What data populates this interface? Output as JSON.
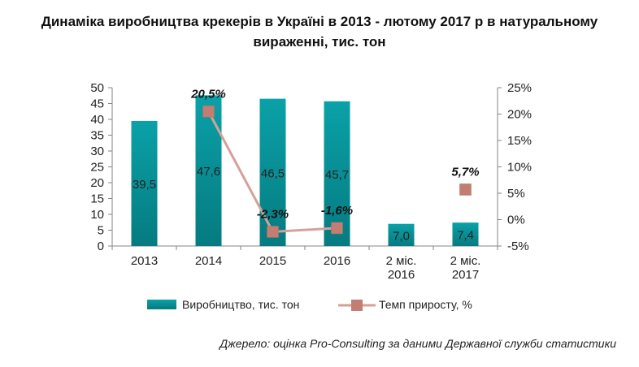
{
  "title_line1": "Динаміка виробництва крекерів в Україні в 2013 - лютому 2017 р в натуральному",
  "title_line2": "вираженні, тис. тон",
  "source": "Джерело: оцінка Pro-Consulting за даними Державної служби статистики",
  "colors": {
    "bar": "#0aa1a8",
    "line": "#d4a19a",
    "marker": "#c27e73"
  },
  "chart_data": {
    "type": "bar",
    "categories": [
      [
        "2013"
      ],
      [
        "2014"
      ],
      [
        "2015"
      ],
      [
        "2016"
      ],
      [
        "2 міс.",
        "2016"
      ],
      [
        "2 міс.",
        "2017"
      ]
    ],
    "series": [
      {
        "name": "Виробництво, тис. тон",
        "type": "bar",
        "axis": "left",
        "values": [
          39.5,
          47.6,
          46.5,
          45.7,
          7.0,
          7.4
        ],
        "labels": [
          "39,5",
          "47,6",
          "46,5",
          "45,7",
          "7,0",
          "7,4"
        ]
      },
      {
        "name": "Темп приросту, %",
        "type": "line",
        "axis": "right",
        "segments": [
          [
            1,
            2,
            3
          ],
          [
            5
          ]
        ],
        "points": [
          {
            "category_index": 1,
            "value": 20.5,
            "label": "20,5%"
          },
          {
            "category_index": 2,
            "value": -2.3,
            "label": "-2,3%"
          },
          {
            "category_index": 3,
            "value": -1.6,
            "label": "-1,6%"
          },
          {
            "category_index": 5,
            "value": 5.7,
            "label": "5,7%"
          }
        ]
      }
    ],
    "y_left": {
      "min": 0,
      "max": 50,
      "ticks": [
        "0",
        "5",
        "10",
        "15",
        "20",
        "25",
        "30",
        "35",
        "40",
        "45",
        "50"
      ]
    },
    "y_right": {
      "min": -5,
      "max": 25,
      "ticks": [
        "-5%",
        "0%",
        "5%",
        "10%",
        "15%",
        "20%",
        "25%"
      ]
    },
    "grid": false,
    "legend_position": "bottom"
  }
}
